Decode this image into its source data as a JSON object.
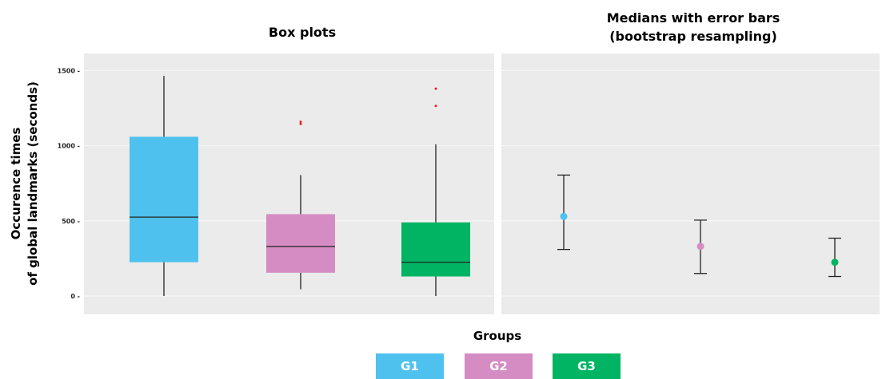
{
  "figure": {
    "ylabel_line1": "Occurence times",
    "ylabel_line2": "of global landmarks (seconds)",
    "xlabel": "Groups",
    "background": "#ebebeb",
    "grid_color": "#ffffff"
  },
  "groups": [
    {
      "name": "G1",
      "color": "#4fc1ee"
    },
    {
      "name": "G2",
      "color": "#d48cc3"
    },
    {
      "name": "G3",
      "color": "#00b463"
    }
  ],
  "chart_data": [
    {
      "type": "box",
      "title": "Box plots",
      "ylim": [
        -130,
        1600
      ],
      "yticks": [
        0,
        500,
        1000,
        1500
      ],
      "grid": true,
      "categories": [
        "G1",
        "G2",
        "G3"
      ],
      "boxes": [
        {
          "group": "G1",
          "min": 0,
          "q1": 225,
          "median": 525,
          "q3": 1060,
          "max": 1465,
          "outliers": []
        },
        {
          "group": "G2",
          "min": 45,
          "q1": 155,
          "median": 330,
          "q3": 545,
          "max": 805,
          "outliers": [
            1145,
            1160
          ]
        },
        {
          "group": "G3",
          "min": 0,
          "q1": 130,
          "median": 225,
          "q3": 490,
          "max": 1010,
          "outliers": [
            1265,
            1380
          ]
        }
      ],
      "outlier_color": "#e8231f"
    },
    {
      "type": "errorbar",
      "title_line1": "Medians with error bars",
      "title_line2": "(bootstrap resampling)",
      "ylim": [
        -130,
        1600
      ],
      "grid": true,
      "categories": [
        "G1",
        "G2",
        "G3"
      ],
      "points": [
        {
          "group": "G1",
          "median": 530,
          "lower": 310,
          "upper": 805
        },
        {
          "group": "G2",
          "median": 330,
          "lower": 150,
          "upper": 505
        },
        {
          "group": "G3",
          "median": 225,
          "lower": 130,
          "upper": 385
        }
      ]
    }
  ]
}
